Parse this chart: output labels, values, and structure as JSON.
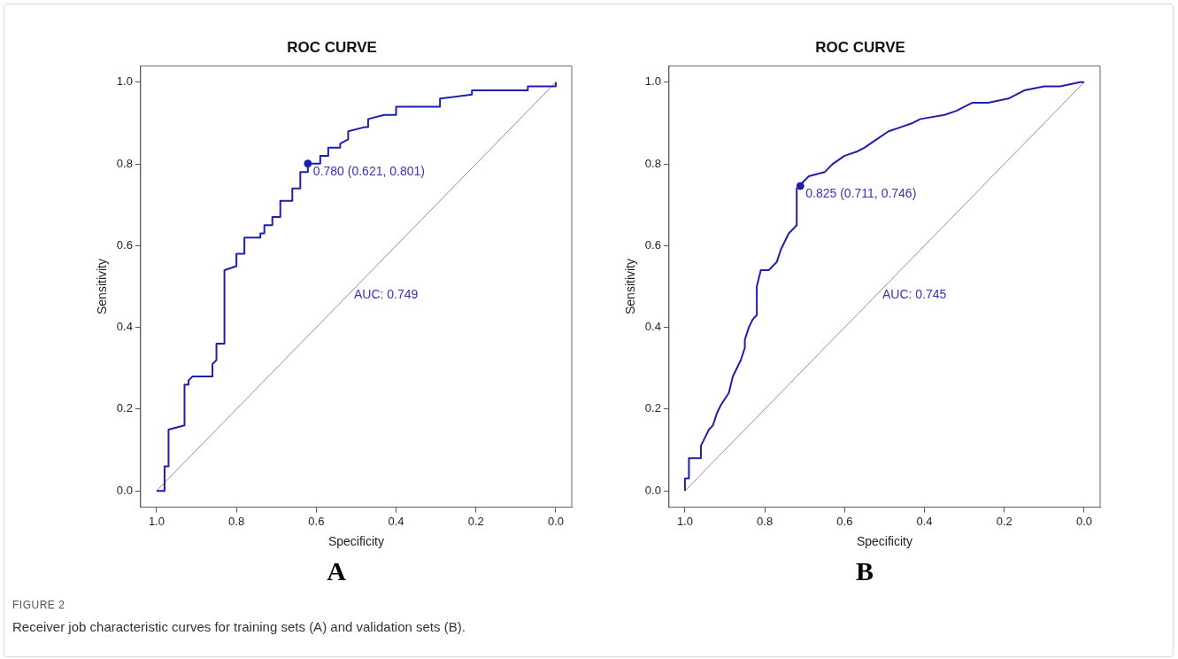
{
  "chart_data": [
    {
      "type": "line",
      "title": "ROC CURVE",
      "xlabel": "Specificity",
      "ylabel": "Sensitivity",
      "xlim": [
        1.04,
        -0.04
      ],
      "ylim": [
        -0.04,
        1.04
      ],
      "xticks": [
        {
          "value": 1,
          "label": "1.0"
        },
        {
          "value": 0.8,
          "label": "0.8"
        },
        {
          "value": 0.6,
          "label": "0.6"
        },
        {
          "value": 0.4,
          "label": "0.4"
        },
        {
          "value": 0.2,
          "label": "0.2"
        },
        {
          "value": 0,
          "label": "0.0"
        }
      ],
      "yticks": [
        {
          "value": 0,
          "label": "0.0"
        },
        {
          "value": 0.2,
          "label": "0.2"
        },
        {
          "value": 0.4,
          "label": "0.4"
        },
        {
          "value": 0.6,
          "label": "0.6"
        },
        {
          "value": 0.8,
          "label": "0.8"
        },
        {
          "value": 1,
          "label": "1.0"
        }
      ],
      "grid": false,
      "legend": false,
      "marker": "none",
      "series": [
        {
          "type": "line",
          "color": "#1f1fae",
          "x": [
            1,
            0.98,
            0.98,
            0.97,
            0.97,
            0.93,
            0.93,
            0.92,
            0.92,
            0.91,
            0.86,
            0.86,
            0.85,
            0.85,
            0.83,
            0.83,
            0.8,
            0.8,
            0.78,
            0.78,
            0.74,
            0.74,
            0.73,
            0.73,
            0.71,
            0.71,
            0.69,
            0.69,
            0.66,
            0.66,
            0.64,
            0.64,
            0.621,
            0.621,
            0.59,
            0.59,
            0.57,
            0.57,
            0.54,
            0.54,
            0.52,
            0.52,
            0.48,
            0.47,
            0.47,
            0.43,
            0.4,
            0.4,
            0.29,
            0.29,
            0.21,
            0.21,
            0.07,
            0.07,
            0.03,
            0,
            0
          ],
          "values": [
            0,
            0,
            0.06,
            0.06,
            0.15,
            0.16,
            0.26,
            0.26,
            0.27,
            0.28,
            0.28,
            0.31,
            0.32,
            0.36,
            0.36,
            0.54,
            0.55,
            0.58,
            0.58,
            0.62,
            0.62,
            0.63,
            0.63,
            0.65,
            0.65,
            0.67,
            0.67,
            0.71,
            0.71,
            0.74,
            0.74,
            0.78,
            0.78,
            0.801,
            0.801,
            0.82,
            0.82,
            0.84,
            0.84,
            0.85,
            0.86,
            0.88,
            0.89,
            0.89,
            0.91,
            0.92,
            0.92,
            0.94,
            0.94,
            0.96,
            0.97,
            0.98,
            0.98,
            0.99,
            0.99,
            0.99,
            1
          ]
        },
        {
          "type": "line",
          "color": "#8c8cb4",
          "x": [
            1,
            0
          ],
          "values": [
            0,
            1
          ]
        },
        {
          "type": "scatter",
          "color": "#1f1fae",
          "marker": "circle",
          "x": [
            0.621
          ],
          "values": [
            0.801
          ]
        }
      ],
      "annotations": [
        {
          "text": "0.780 (0.621, 0.801)",
          "x": 0.621,
          "y": 0.801
        },
        "AUC: 0.749",
        "A",
        "FIGURE 2",
        "Receiver job characteristic curves for training sets (A) and validation sets (B)."
      ]
    },
    {
      "type": "line",
      "title": "ROC CURVE",
      "xlabel": "Specificity",
      "ylabel": "Sensitivity",
      "xlim": [
        1.04,
        -0.04
      ],
      "ylim": [
        -0.04,
        1.04
      ],
      "xticks": [
        {
          "value": 1,
          "label": "1.0"
        },
        {
          "value": 0.8,
          "label": "0.8"
        },
        {
          "value": 0.6,
          "label": "0.6"
        },
        {
          "value": 0.4,
          "label": "0.4"
        },
        {
          "value": 0.2,
          "label": "0.2"
        },
        {
          "value": 0,
          "label": "0.0"
        }
      ],
      "yticks": [
        {
          "value": 0,
          "label": "0.0"
        },
        {
          "value": 0.2,
          "label": "0.2"
        },
        {
          "value": 0.4,
          "label": "0.4"
        },
        {
          "value": 0.6,
          "label": "0.6"
        },
        {
          "value": 0.8,
          "label": "0.8"
        },
        {
          "value": 1,
          "label": "1.0"
        }
      ],
      "grid": false,
      "legend": false,
      "marker": "none",
      "series": [
        {
          "type": "line",
          "color": "#1f1fae",
          "x": [
            1,
            1,
            0.99,
            0.99,
            0.96,
            0.96,
            0.95,
            0.94,
            0.93,
            0.92,
            0.91,
            0.89,
            0.88,
            0.87,
            0.86,
            0.85,
            0.85,
            0.84,
            0.83,
            0.82,
            0.82,
            0.81,
            0.79,
            0.77,
            0.76,
            0.75,
            0.74,
            0.72,
            0.72,
            0.711,
            0.71,
            0.69,
            0.65,
            0.63,
            0.6,
            0.57,
            0.55,
            0.52,
            0.49,
            0.46,
            0.43,
            0.41,
            0.35,
            0.32,
            0.28,
            0.24,
            0.19,
            0.15,
            0.1,
            0.06,
            0.01,
            0
          ],
          "values": [
            0,
            0.03,
            0.03,
            0.08,
            0.08,
            0.11,
            0.13,
            0.15,
            0.16,
            0.19,
            0.21,
            0.24,
            0.28,
            0.3,
            0.32,
            0.35,
            0.37,
            0.4,
            0.42,
            0.43,
            0.5,
            0.54,
            0.54,
            0.56,
            0.59,
            0.61,
            0.63,
            0.65,
            0.74,
            0.746,
            0.75,
            0.77,
            0.78,
            0.8,
            0.82,
            0.83,
            0.84,
            0.86,
            0.88,
            0.89,
            0.9,
            0.91,
            0.92,
            0.93,
            0.95,
            0.95,
            0.96,
            0.98,
            0.99,
            0.99,
            1,
            1
          ]
        },
        {
          "type": "line",
          "color": "#8c8cb4",
          "x": [
            1,
            0
          ],
          "values": [
            0,
            1
          ]
        },
        {
          "type": "scatter",
          "color": "#1f1fae",
          "marker": "circle",
          "x": [
            0.711
          ],
          "values": [
            0.746
          ]
        }
      ],
      "annotations": [
        {
          "text": "0.825 (0.711, 0.746)",
          "x": 0.711,
          "y": 0.746
        },
        "AUC: 0.745",
        "B"
      ]
    }
  ]
}
